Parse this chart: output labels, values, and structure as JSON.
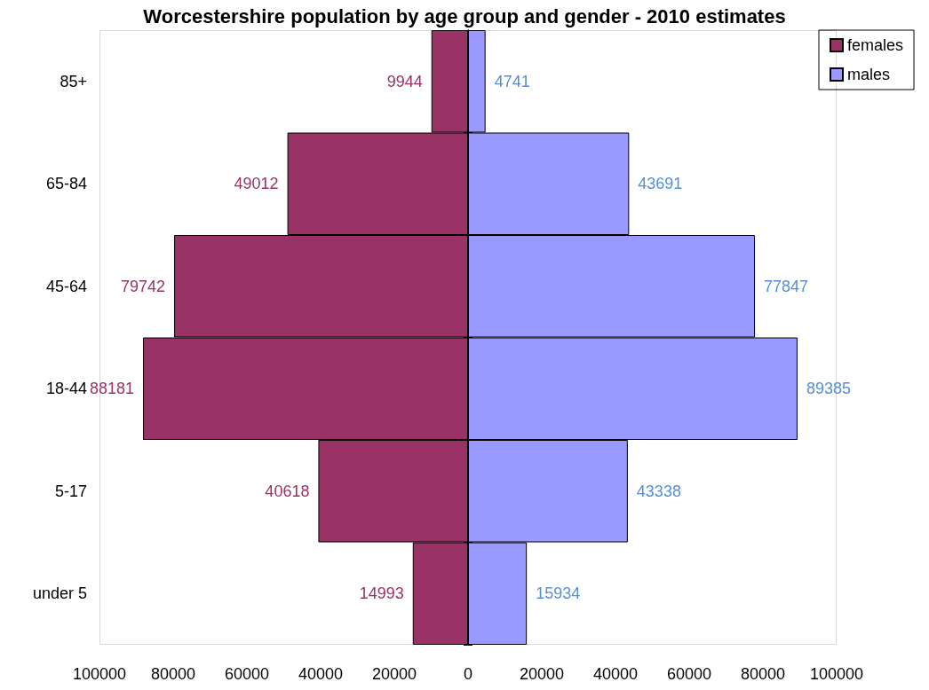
{
  "chart_data": [
    {
      "type": "bar",
      "orientation": "horizontal",
      "title": "Worcestershire population by age group and gender - 2010 estimates",
      "categories": [
        "85+",
        "65-84",
        "45-64",
        "18-44",
        "5-17",
        "under 5"
      ],
      "series": [
        {
          "name": "females",
          "color": "#993366",
          "values": [
            9944,
            49012,
            79742,
            88181,
            40618,
            14993
          ]
        }
      ],
      "xlim": [
        100000,
        0
      ],
      "xticks": [
        100000,
        80000,
        60000,
        40000,
        20000
      ],
      "data_labels": true,
      "legend": "top right"
    },
    {
      "type": "bar",
      "orientation": "horizontal",
      "categories": [
        null,
        null,
        null,
        null,
        null,
        null
      ],
      "series": [
        {
          "name": "males",
          "color": "#9999ff",
          "values": [
            4741,
            43691,
            77847,
            89385,
            43338,
            15934
          ]
        }
      ],
      "xlim": [
        0,
        100000
      ],
      "xticks": [
        0,
        20000,
        40000,
        60000,
        80000,
        100000
      ],
      "tick_labels": "x",
      "data_labels": true,
      "legend": "top right"
    }
  ]
}
